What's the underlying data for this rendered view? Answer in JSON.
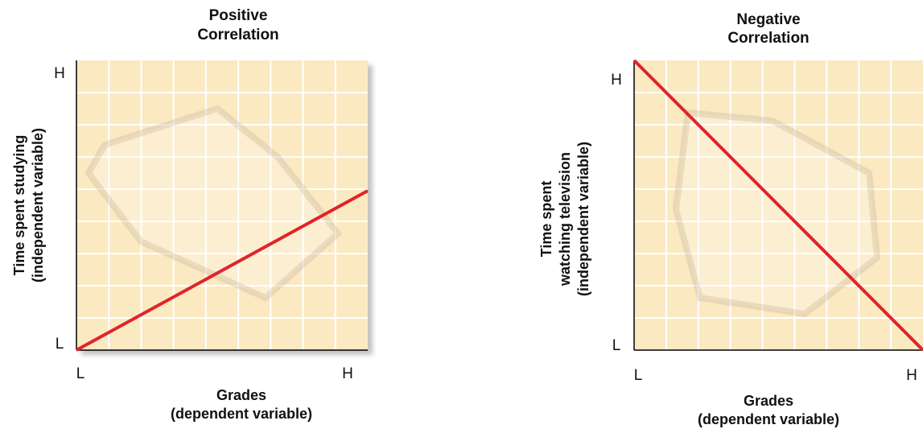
{
  "panels": [
    {
      "title": [
        "Positive",
        "Correlation"
      ],
      "y_label": [
        "Time spent studying",
        "(independent variable)"
      ],
      "x_label": [
        "Grades",
        "(dependent variable)"
      ],
      "y_ticks": [
        "H",
        "L"
      ],
      "x_ticks": [
        "L",
        "H"
      ]
    },
    {
      "title": [
        "Negative",
        "Correlation"
      ],
      "y_label": [
        "Time spent",
        "watching television",
        "(independent variable)"
      ],
      "x_label": [
        "Grades",
        "(dependent variable)"
      ],
      "y_ticks": [
        "H",
        "L"
      ],
      "x_ticks": [
        "L",
        "H"
      ]
    }
  ]
}
